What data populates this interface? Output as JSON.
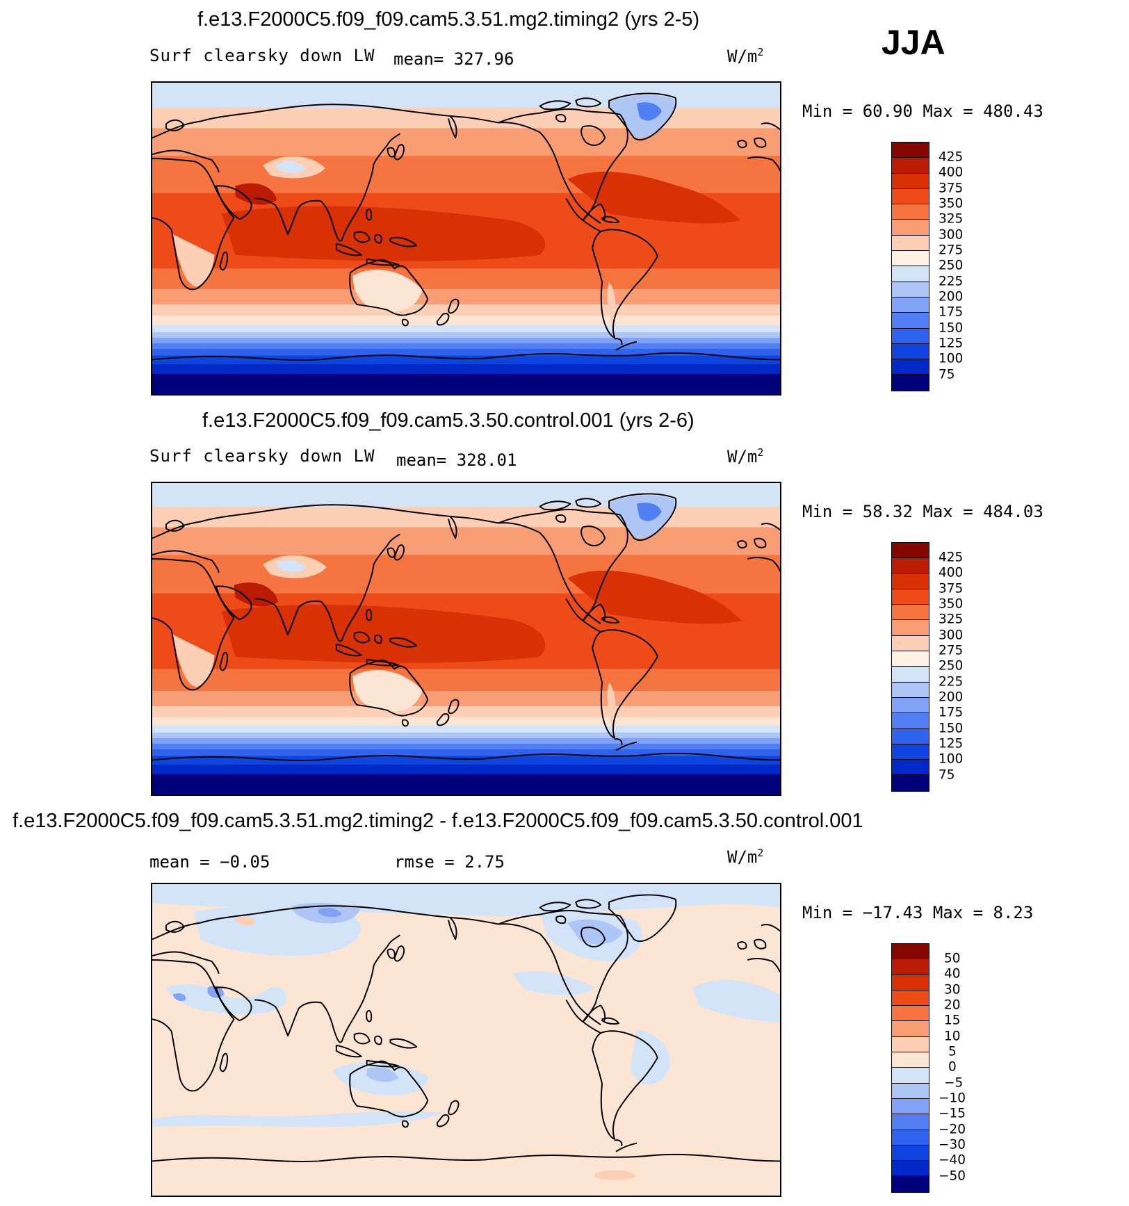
{
  "season": "JJA",
  "colors": {
    "abs_scale": [
      "#00007c",
      "#0010a0",
      "#0029c7",
      "#0e45e0",
      "#2f62ed",
      "#537ff5",
      "#80a2f7",
      "#aec6f6",
      "#d3e4f8",
      "#fff2e2",
      "#fdcfb5",
      "#f99e74",
      "#f67440",
      "#ed4c18",
      "#d83106",
      "#b91c02",
      "#860700"
    ],
    "diff_scale": [
      "#00007c",
      "#0010a0",
      "#0029c7",
      "#0e45e0",
      "#2f62ed",
      "#537ff5",
      "#80a2f7",
      "#aec6f6",
      "#d3e4f8",
      "#fde5d4",
      "#fdcfb5",
      "#f99e74",
      "#f67440",
      "#ed4c18",
      "#d83106",
      "#b91c02",
      "#860700"
    ]
  },
  "panels": [
    {
      "title": "f.e13.F2000C5.f09_f09.cam5.3.51.mg2.timing2 (yrs 2-5)",
      "variable": "Surf clearsky down LW",
      "mean_text": "mean= 327.96",
      "units": "W/m",
      "units_sup": "2",
      "minmax_text": "Min =   60.90 Max = 480.43",
      "colorbar_labels": [
        "425",
        "400",
        "375",
        "350",
        "325",
        "300",
        "275",
        "250",
        "225",
        "200",
        "175",
        "150",
        "125",
        "100",
        "75"
      ]
    },
    {
      "title": "f.e13.F2000C5.f09_f09.cam5.3.50.control.001 (yrs 2-6)",
      "variable": "Surf clearsky down LW",
      "mean_text": "mean= 328.01",
      "units": "W/m",
      "units_sup": "2",
      "minmax_text": "Min =   58.32 Max = 484.03",
      "colorbar_labels": [
        "425",
        "400",
        "375",
        "350",
        "325",
        "300",
        "275",
        "250",
        "225",
        "200",
        "175",
        "150",
        "125",
        "100",
        "75"
      ]
    },
    {
      "title": "f.e13.F2000C5.f09_f09.cam5.3.51.mg2.timing2 - f.e13.F2000C5.f09_f09.cam5.3.50.control.001",
      "mean_text": "mean =   −0.05",
      "rmse_text": "rmse =    2.75",
      "units": "W/m",
      "units_sup": "2",
      "minmax_text": "Min = −17.43 Max =    8.23",
      "colorbar_labels": [
        "50",
        "40",
        "30",
        "20",
        "15",
        "10",
        "5",
        "0",
        "−5",
        "−10",
        "−15",
        "−20",
        "−30",
        "−40",
        "−50"
      ]
    }
  ]
}
